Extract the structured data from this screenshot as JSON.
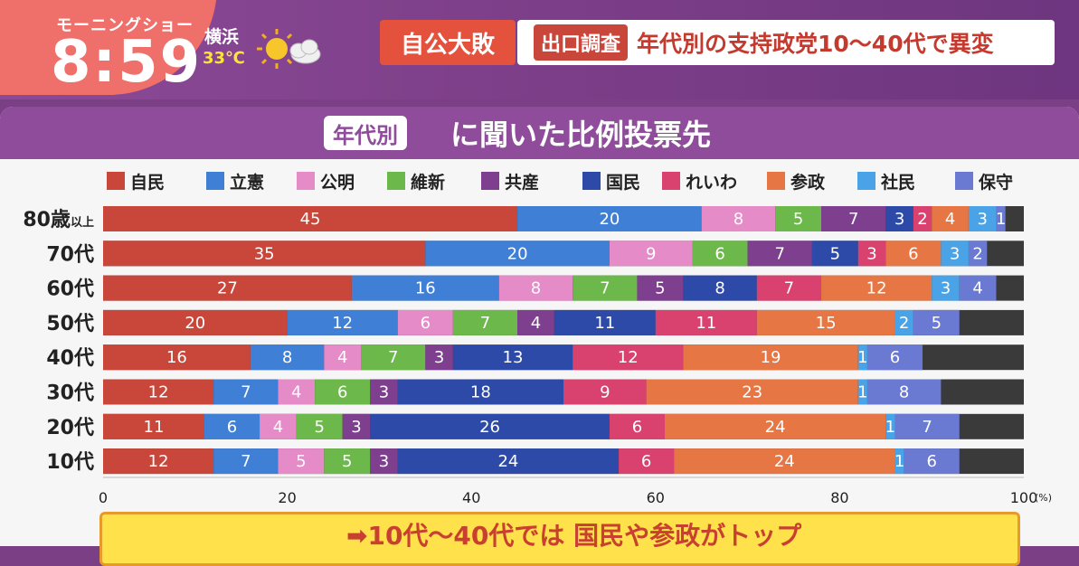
{
  "header": {
    "show_name": "モーニングショー",
    "time": "8:59",
    "city": "横浜",
    "temperature": "33℃",
    "weather_icon": "sun-cloud-icon",
    "headline_tag": "自公大敗",
    "headline_badge": "出口調査",
    "headline_text": "年代別の支持政党10～40代で異変"
  },
  "panel": {
    "title_badge": "年代別",
    "title_main": "に聞いた比例投票先"
  },
  "banner": {
    "text": "➡10代～40代では 国民や参政がトップ"
  },
  "chart_data": {
    "type": "bar",
    "orientation": "horizontal",
    "stacked": true,
    "categories": [
      "80歳以上",
      "70代",
      "60代",
      "50代",
      "40代",
      "30代",
      "20代",
      "10代"
    ],
    "category_parts": [
      {
        "main": "80歳",
        "sub": "以上"
      },
      {
        "main": "70代",
        "sub": ""
      },
      {
        "main": "60代",
        "sub": ""
      },
      {
        "main": "50代",
        "sub": ""
      },
      {
        "main": "40代",
        "sub": ""
      },
      {
        "main": "30代",
        "sub": ""
      },
      {
        "main": "20代",
        "sub": ""
      },
      {
        "main": "10代",
        "sub": ""
      }
    ],
    "series": [
      {
        "name": "自民",
        "color": "#c8473a",
        "values": [
          45,
          35,
          27,
          20,
          16,
          12,
          11,
          12
        ]
      },
      {
        "name": "立憲",
        "color": "#3f7fd6",
        "values": [
          20,
          20,
          16,
          12,
          8,
          7,
          6,
          7
        ]
      },
      {
        "name": "公明",
        "color": "#e58bc8",
        "values": [
          8,
          9,
          8,
          6,
          4,
          4,
          4,
          5
        ]
      },
      {
        "name": "維新",
        "color": "#6cb84a",
        "values": [
          5,
          6,
          7,
          7,
          7,
          6,
          5,
          5
        ]
      },
      {
        "name": "共産",
        "color": "#7d3f8e",
        "values": [
          7,
          7,
          5,
          4,
          3,
          3,
          3,
          3
        ]
      },
      {
        "name": "国民",
        "color": "#2e4aa8",
        "values": [
          3,
          5,
          8,
          11,
          13,
          18,
          26,
          24
        ]
      },
      {
        "name": "れいわ",
        "color": "#d9416f",
        "values": [
          2,
          3,
          7,
          11,
          12,
          9,
          6,
          6
        ]
      },
      {
        "name": "参政",
        "color": "#e67644",
        "values": [
          4,
          6,
          12,
          15,
          19,
          23,
          24,
          24
        ]
      },
      {
        "name": "社民",
        "color": "#4aa3e6",
        "values": [
          3,
          3,
          3,
          2,
          1,
          1,
          1,
          1
        ]
      },
      {
        "name": "保守",
        "color": "#6a79d1",
        "values": [
          1,
          2,
          4,
          5,
          6,
          8,
          7,
          6
        ]
      }
    ],
    "remainder_color": "#3a3a3a",
    "xlim": [
      0,
      100
    ],
    "xticks": [
      0,
      20,
      40,
      60,
      80,
      100
    ],
    "x_unit": "(%)",
    "legend_position": "top"
  }
}
